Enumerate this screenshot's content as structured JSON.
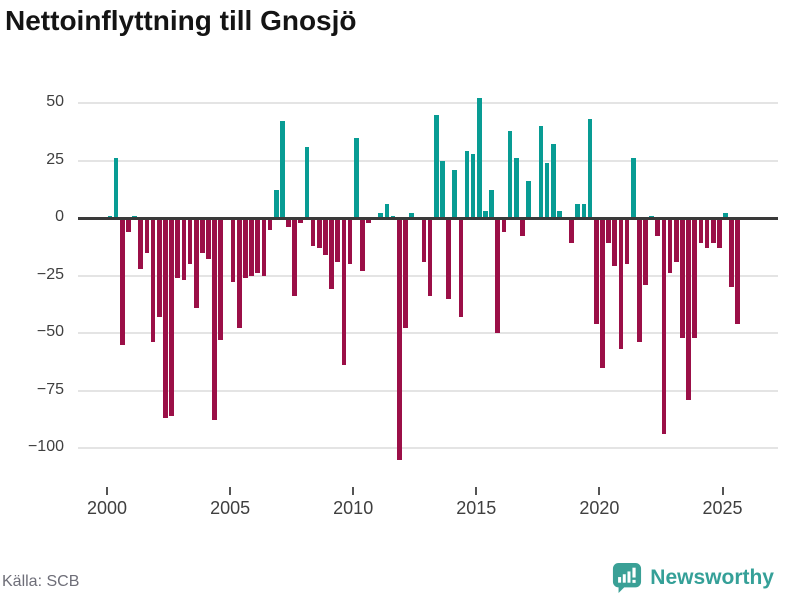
{
  "header": {
    "title": "Nettoinflyttning till Gnosjö"
  },
  "y_axis": {
    "labels": [
      "50",
      "25",
      "0",
      "−25",
      "−50",
      "−75",
      "−100"
    ],
    "values": [
      50,
      25,
      0,
      -25,
      -50,
      -75,
      -100
    ]
  },
  "x_axis": {
    "years": [
      "2000",
      "2005",
      "2010",
      "2015",
      "2020",
      "2025"
    ]
  },
  "footer": {
    "source": "Källa: SCB",
    "logo_text": "Newsworthy"
  },
  "colors": {
    "positive": "#089c94",
    "negative": "#9b0f47",
    "grid": "#e4e4e4",
    "axis": "#3a3a3a",
    "title": "#141414",
    "tick_text": "#3f3f3f",
    "source_text": "#6e6e78",
    "logo": "#3aa096"
  },
  "chart_data": {
    "type": "bar",
    "title": "Nettoinflyttning till Gnosjö",
    "source_label": "Källa: SCB",
    "frequency": "quarterly",
    "x_range": [
      "2000 Q1",
      "2025 Q3"
    ],
    "ylim": [
      -110,
      55
    ],
    "gridlines": [
      50,
      25,
      0,
      -25,
      -50,
      -75,
      -100
    ],
    "legend": "none",
    "series_note": "positive bars teal, negative bars maroon",
    "values": [
      1,
      26,
      -55,
      -6,
      1,
      -22,
      -15,
      -54,
      -43,
      -87,
      -86,
      -26,
      -27,
      -20,
      -39,
      -15,
      -18,
      -88,
      -53,
      0,
      -28,
      -48,
      -26,
      -25,
      -24,
      -25,
      -5,
      12,
      42,
      -4,
      -34,
      -2,
      31,
      -12,
      -13,
      -16,
      -31,
      -19,
      -64,
      -20,
      35,
      -23,
      -2,
      0,
      2,
      6,
      1,
      -105,
      -48,
      2,
      0,
      -19,
      -34,
      45,
      25,
      -35,
      21,
      -43,
      29,
      28,
      52,
      3,
      12,
      -50,
      -6,
      38,
      26,
      -8,
      16,
      0,
      40,
      24,
      32,
      3,
      0,
      -11,
      6,
      6,
      43,
      -46,
      -65,
      -11,
      -21,
      -57,
      -20,
      26,
      -54,
      -29,
      1,
      -8,
      -94,
      -24,
      -19,
      -52,
      -79,
      -52,
      -11,
      -13,
      -11,
      -13,
      2,
      -30,
      -46
    ]
  }
}
